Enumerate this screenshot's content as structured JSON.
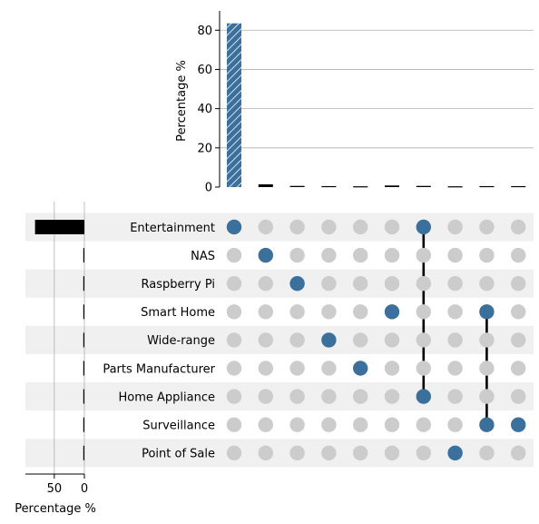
{
  "chart_data": {
    "type": "upset",
    "sets": [
      "Entertainment",
      "NAS",
      "Raspberry Pi",
      "Smart Home",
      "Wide-range",
      "Parts Manufacturer",
      "Home Appliance",
      "Surveillance",
      "Point of Sale"
    ],
    "set_sizes": [
      82,
      1.5,
      0.8,
      0.8,
      0.8,
      0.8,
      1.2,
      1.0,
      0.4
    ],
    "intersections": [
      {
        "sets": [
          "Entertainment"
        ],
        "value": 83.5
      },
      {
        "sets": [
          "NAS"
        ],
        "value": 1.4
      },
      {
        "sets": [
          "Raspberry Pi"
        ],
        "value": 0.6
      },
      {
        "sets": [
          "Wide-range"
        ],
        "value": 0.5
      },
      {
        "sets": [
          "Parts Manufacturer"
        ],
        "value": 0.4
      },
      {
        "sets": [
          "Smart Home"
        ],
        "value": 0.8
      },
      {
        "sets": [
          "Entertainment",
          "Home Appliance"
        ],
        "value": 0.6
      },
      {
        "sets": [
          "Point of Sale"
        ],
        "value": 0.4
      },
      {
        "sets": [
          "Smart Home",
          "Surveillance"
        ],
        "value": 0.5
      },
      {
        "sets": [
          "Surveillance"
        ],
        "value": 0.5
      }
    ],
    "bar_axis": {
      "label": "Percentage %",
      "ylim": [
        0,
        88
      ],
      "ticks": [
        0,
        20,
        40,
        60,
        80
      ]
    },
    "size_axis": {
      "label": "Percentage %",
      "xlim": [
        0,
        98
      ],
      "ticks": [
        50,
        0
      ]
    },
    "colors": {
      "active": "#3b6f9c",
      "inactive": "#cccccc",
      "first_bar": "#3b6f9c",
      "other_bars": "#000000",
      "stripe": "#f0f0f0",
      "grid": "#b0b0b0"
    }
  }
}
